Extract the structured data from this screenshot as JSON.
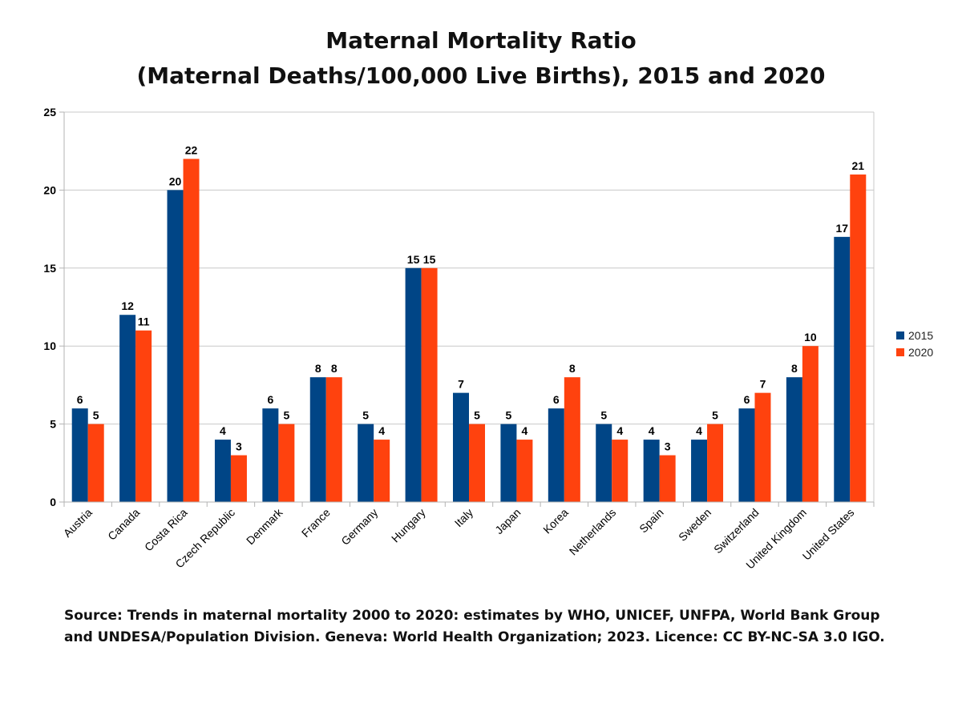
{
  "chart_data": {
    "type": "bar",
    "title": "Maternal Mortality Ratio",
    "subtitle": "(Maternal Deaths/100,000 Live Births), 2015 and 2020",
    "xlabel": "",
    "ylabel": "",
    "ylim": [
      0,
      25
    ],
    "yticks": [
      "0",
      "5",
      "10",
      "15",
      "20",
      "25"
    ],
    "grid": true,
    "legend_position": "right",
    "categories": [
      "Austria",
      "Canada",
      "Costa Rica",
      "Czech Republic",
      "Denmark",
      "France",
      "Germany",
      "Hungary",
      "Italy",
      "Japan",
      "Korea",
      "Netherlands",
      "Spain",
      "Sweden",
      "Switzerland",
      "United Kingdom",
      "United States"
    ],
    "series": [
      {
        "name": "2015",
        "color": "#004586",
        "values": [
          6,
          12,
          20,
          4,
          6,
          8,
          5,
          15,
          7,
          5,
          6,
          5,
          4,
          4,
          6,
          8,
          17
        ]
      },
      {
        "name": "2020",
        "color": "#ff420e",
        "values": [
          5,
          11,
          22,
          3,
          5,
          8,
          4,
          15,
          5,
          4,
          8,
          4,
          3,
          5,
          7,
          10,
          21
        ]
      }
    ]
  },
  "source": {
    "line1": "Source: Trends in maternal mortality 2000 to 2020: estimates by WHO, UNICEF, UNFPA, World Bank Group",
    "line2": "and UNDESA/Population Division. Geneva: World Health Organization; 2023. Licence: CC BY-NC-SA 3.0 IGO."
  }
}
